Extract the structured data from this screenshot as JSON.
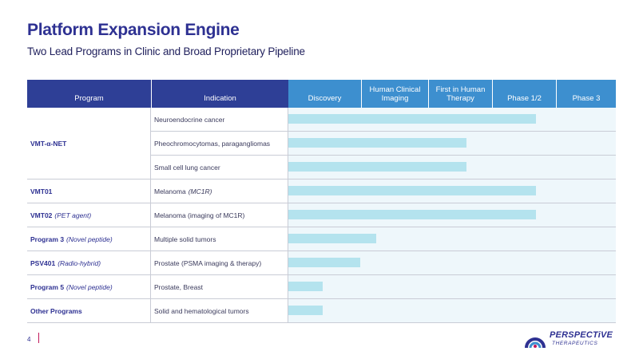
{
  "header": {
    "title": "Platform Expansion Engine",
    "subtitle": "Two Lead Programs in Clinic and Broad Proprietary Pipeline"
  },
  "table": {
    "columns": [
      "Program",
      "Indication",
      "Discovery",
      "Human Clinical Imaging",
      "First in Human Therapy",
      "Phase 1/2",
      "Phase 3"
    ],
    "groups": [
      {
        "program": "VMT-α-NET",
        "note": "",
        "rows": [
          {
            "indication": "Neuroendocrine cancer",
            "indication_note": "",
            "progress_pct": 75.5
          },
          {
            "indication": "Pheochromocytomas, paragangliomas",
            "indication_note": "",
            "progress_pct": 54.5
          },
          {
            "indication": "Small cell lung cancer",
            "indication_note": "",
            "progress_pct": 54.5
          }
        ]
      },
      {
        "program": "VMT01",
        "note": "",
        "rows": [
          {
            "indication": "Melanoma",
            "indication_note": "(MC1R)",
            "progress_pct": 75.5
          }
        ]
      },
      {
        "program": "VMT02",
        "note": "(PET agent)",
        "rows": [
          {
            "indication": "Melanoma (imaging of MC1R)",
            "indication_note": "",
            "progress_pct": 75.5
          }
        ]
      },
      {
        "program": "Program 3",
        "note": "(Novel peptide)",
        "rows": [
          {
            "indication": "Multiple solid tumors",
            "indication_note": "",
            "progress_pct": 26.8
          }
        ]
      },
      {
        "program": "PSV401",
        "note": "(Radio-hybrid)",
        "rows": [
          {
            "indication": "Prostate (PSMA imaging & therapy)",
            "indication_note": "",
            "progress_pct": 21.9
          }
        ]
      },
      {
        "program": "Program 5",
        "note": "(Novel peptide)",
        "rows": [
          {
            "indication": "Prostate, Breast",
            "indication_note": "",
            "progress_pct": 10.5
          }
        ]
      },
      {
        "program": "Other Programs",
        "note": "",
        "rows": [
          {
            "indication": "Solid and hematological tumors",
            "indication_note": "",
            "progress_pct": 10.5
          }
        ]
      }
    ]
  },
  "footer": {
    "page_number": "4",
    "logo_name": "PERSPECTiVE",
    "logo_sub": "THERAPEUTICS"
  },
  "colors": {
    "header_dark": "#2e3f96",
    "header_light": "#3d8fcf",
    "bar": "#b4e3ee",
    "bar_track": "#eef7fb",
    "accent": "#c2185b"
  }
}
